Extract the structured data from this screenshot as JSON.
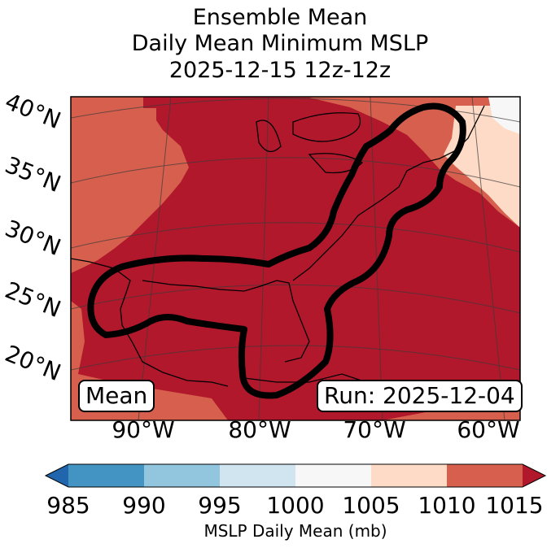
{
  "title": {
    "line1": "Ensemble Mean",
    "line2": "Daily Mean Minimum MSLP",
    "line3": "2025-12-15 12z-12z"
  },
  "badges": {
    "mean": "Mean",
    "run": "Run: 2025-12-04"
  },
  "map": {
    "region": "Gulf of Mexico, Eastern United States, Western Atlantic",
    "lat_labels": [
      "40°N",
      "35°N",
      "30°N",
      "25°N",
      "20°N"
    ],
    "lon_labels": [
      "90°W",
      "80°W",
      "70°W",
      "60°W"
    ],
    "contour_color": "#000000",
    "fill_colors": {
      "985-990": "#4393c3",
      "1005-1010": "#fddbc7",
      "1010-1015": "#d6604d",
      ">1015": "#b2182b",
      "995-1000": "#d1e5f0"
    }
  },
  "colorbar": {
    "label": "MSLP Daily Mean (mb)",
    "ticks": [
      "985",
      "990",
      "995",
      "1000",
      "1005",
      "1010",
      "1015"
    ],
    "colors": [
      "#2166ac",
      "#4393c3",
      "#92c5de",
      "#d1e5f0",
      "#f7f7f7",
      "#fddbc7",
      "#d6604d",
      "#b2182b"
    ]
  }
}
